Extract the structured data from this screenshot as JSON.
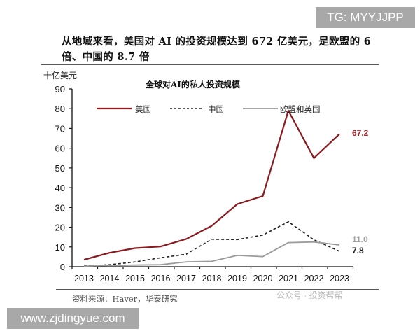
{
  "watermarks": {
    "tg": "TG: MYYJJPP",
    "site": "www.zjdingyue.com",
    "faint_corner": "公众号 · 投资帮帮"
  },
  "headline": "从地域来看，美国对 AI 的投资规模达到 672 亿美元，是欧盟的 6 倍、中国的 8.7 倍",
  "source_note": "资料来源：Haver，华泰研究",
  "colors": {
    "us": "#8b1a1f",
    "us_label": "#a0262b",
    "china": "#222222",
    "eu_uk": "#9a9a9a",
    "eu_uk_label": "#a0a0a0",
    "axis": "#111111"
  },
  "chart_data": {
    "type": "line",
    "title": "全球对AI的私人投资规模",
    "xlabel": "",
    "ylabel": "十亿美元",
    "ylim": [
      0,
      90
    ],
    "yticks": [
      0,
      10,
      20,
      30,
      40,
      50,
      60,
      70,
      80,
      90
    ],
    "grid": false,
    "legend_position": "top",
    "categories": [
      "2013",
      "2014",
      "2015",
      "2016",
      "2017",
      "2018",
      "2019",
      "2020",
      "2021",
      "2022",
      "2023"
    ],
    "series": [
      {
        "name": "美国",
        "style": "solid",
        "values": [
          3.5,
          7.0,
          9.4,
          10.2,
          14.0,
          20.7,
          31.7,
          35.8,
          79.0,
          55.0,
          67.2
        ]
      },
      {
        "name": "中国",
        "style": "dashed",
        "values": [
          0.4,
          1.0,
          2.4,
          4.5,
          6.3,
          13.9,
          13.7,
          16.0,
          22.8,
          13.6,
          7.8
        ]
      },
      {
        "name": "欧盟和英国",
        "style": "solid-gray",
        "values": [
          0.3,
          0.6,
          0.8,
          1.0,
          2.4,
          2.7,
          5.7,
          5.1,
          12.2,
          12.5,
          11.0
        ]
      }
    ],
    "annotations": [
      {
        "series": "美国",
        "label": "67.2"
      },
      {
        "series": "欧盟和英国",
        "label": "11.0"
      },
      {
        "series": "中国",
        "label": "7.8"
      }
    ]
  }
}
